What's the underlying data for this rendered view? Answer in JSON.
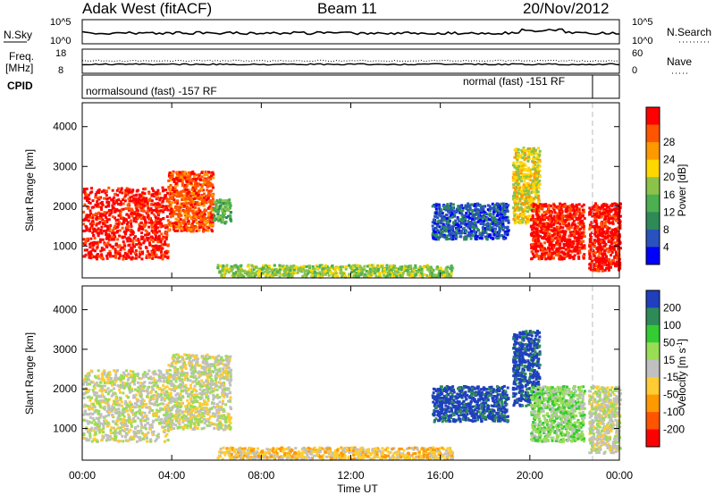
{
  "header": {
    "radar": "Adak West (fitACF)",
    "beam": "Beam 11",
    "date": "20/Nov/2012"
  },
  "noise_panel": {
    "left_label": "N.Sky",
    "right_label": "N.Search",
    "left_ticks": [
      "10^5",
      "10^0"
    ],
    "right_ticks": [
      "10^5",
      "10^0"
    ]
  },
  "freq_panel": {
    "left_label_1": "Freq.",
    "left_label_2": "[MHz]",
    "right_label": "Nave",
    "left_ticks": [
      "18",
      "8"
    ],
    "right_ticks": [
      "60",
      "0"
    ]
  },
  "cpid_panel": {
    "label": "CPID",
    "segments": [
      {
        "start_hour": 0,
        "end_hour": 22.8,
        "text": "normalsound (fast) -157 RF"
      },
      {
        "start_hour": 22.8,
        "end_hour": 24,
        "text": "normal (fast) -151 RF"
      }
    ]
  },
  "time_axis": {
    "label": "Time UT",
    "ticks": [
      "00:00",
      "04:00",
      "08:00",
      "12:00",
      "16:00",
      "20:00",
      "00:00"
    ],
    "range_hours": [
      0,
      24
    ]
  },
  "chart_data": [
    {
      "type": "heatmap",
      "name": "Power",
      "ylabel": "Slant Range [km]",
      "ylim": [
        200,
        4600
      ],
      "yticks": [
        1000,
        2000,
        3000,
        4000
      ],
      "colorbar": {
        "label": "Power [dB]",
        "ticks": [
          "4",
          "8",
          "12",
          "16",
          "20",
          "24",
          "28"
        ],
        "colors": [
          "#0000ff",
          "#2a52be",
          "#2e8b57",
          "#4caf50",
          "#8bc34a",
          "#ffd700",
          "#ff9900",
          "#ff5500",
          "#ff0000"
        ]
      },
      "regions": [
        {
          "t": [
            0.0,
            3.8
          ],
          "r": [
            700,
            2500
          ],
          "level": 8
        },
        {
          "t": [
            3.8,
            5.8
          ],
          "r": [
            1400,
            2900
          ],
          "level": 7
        },
        {
          "t": [
            5.8,
            6.6
          ],
          "r": [
            1600,
            2200
          ],
          "level": 3
        },
        {
          "t": [
            6.0,
            16.5
          ],
          "r": [
            250,
            550
          ],
          "level": 4
        },
        {
          "t": [
            15.6,
            19.0
          ],
          "r": [
            1200,
            2100
          ],
          "level": 1
        },
        {
          "t": [
            19.2,
            20.4
          ],
          "r": [
            1600,
            3500
          ],
          "level": 5
        },
        {
          "t": [
            20.0,
            22.4
          ],
          "r": [
            700,
            2100
          ],
          "level": 8
        },
        {
          "t": [
            22.6,
            24.0
          ],
          "r": [
            400,
            2100
          ],
          "level": 8
        }
      ]
    },
    {
      "type": "heatmap",
      "name": "Velocity",
      "ylabel": "Slant Range [km]",
      "ylim": [
        200,
        4600
      ],
      "yticks": [
        1000,
        2000,
        3000,
        4000
      ],
      "colorbar": {
        "label": "Velocity [m s^-1]",
        "ticks": [
          "200",
          "100",
          "50",
          "15",
          "-15",
          "-50",
          "-100",
          "-200"
        ],
        "colors": [
          "#1f3fbf",
          "#2e8b57",
          "#33cc33",
          "#99dd55",
          "#c0c0c0",
          "#ffcc33",
          "#ff9900",
          "#ff5500",
          "#ff0000"
        ]
      },
      "regions": [
        {
          "t": [
            0.0,
            3.8
          ],
          "r": [
            700,
            2500
          ],
          "level": 4
        },
        {
          "t": [
            3.8,
            6.6
          ],
          "r": [
            1000,
            2900
          ],
          "level": 4
        },
        {
          "t": [
            6.0,
            16.5
          ],
          "r": [
            250,
            550
          ],
          "level": 5
        },
        {
          "t": [
            15.6,
            19.0
          ],
          "r": [
            1200,
            2100
          ],
          "level": 0
        },
        {
          "t": [
            19.2,
            20.4
          ],
          "r": [
            1600,
            3500
          ],
          "level": 0
        },
        {
          "t": [
            20.0,
            22.4
          ],
          "r": [
            700,
            2100
          ],
          "level": 3
        },
        {
          "t": [
            22.6,
            24.0
          ],
          "r": [
            400,
            2100
          ],
          "level": 4
        }
      ]
    }
  ]
}
